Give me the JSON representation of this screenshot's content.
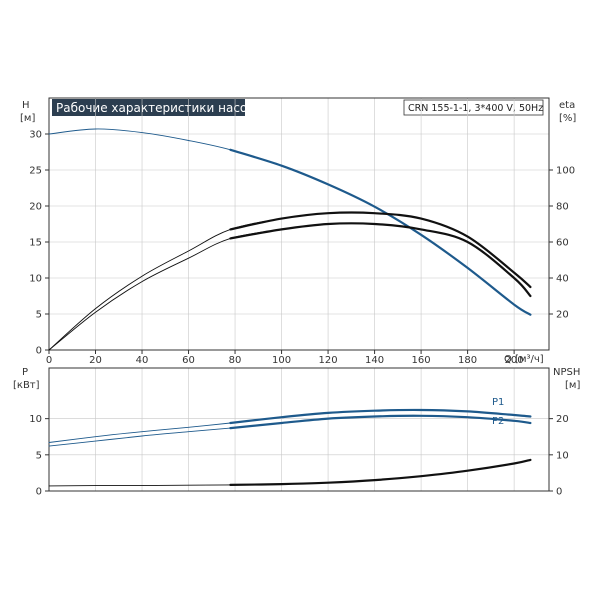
{
  "title": "Рабочие характеристики насоса",
  "model_label": "CRN 155-1-1, 3*400 V, 50Hz",
  "colors": {
    "black": "#111111",
    "blue": "#1e5a8c",
    "grid": "#c8c8c8",
    "title_bg": "#2c3e50"
  },
  "axis_labels": {
    "h": "H",
    "h_unit": "[м]",
    "eta": "eta",
    "eta_unit": "[%]",
    "q": "Q [м³/ч]",
    "p": "P",
    "p_unit": "[кВт]",
    "npsh": "NPSH",
    "npsh_unit": "[м]"
  },
  "chart_data": [
    {
      "type": "line",
      "title": "Рабочие характеристики насоса",
      "xlabel": "Q [м³/ч]",
      "ylabel": "H [м]",
      "y2label": "eta [%]",
      "xlim": [
        0,
        215
      ],
      "ylim": [
        0,
        35
      ],
      "y2lim": [
        0,
        140
      ],
      "x_ticks": [
        0,
        20,
        40,
        60,
        80,
        100,
        120,
        140,
        160,
        180,
        200
      ],
      "y_ticks": [
        0,
        5,
        10,
        15,
        20,
        25,
        30
      ],
      "y2_ticks": [
        20,
        40,
        60,
        80,
        100
      ],
      "grid": true,
      "series": [
        {
          "axis": "left",
          "x": [
            0,
            20,
            40,
            60,
            78,
            100,
            120,
            140,
            160,
            180,
            200,
            207
          ],
          "y": [
            30.0,
            30.7,
            30.2,
            29.1,
            27.8,
            25.6,
            23.0,
            19.9,
            16.0,
            11.4,
            6.3,
            4.9
          ]
        },
        {
          "axis": "right",
          "x": [
            0,
            20,
            40,
            60,
            78,
            100,
            120,
            140,
            160,
            180,
            200,
            207
          ],
          "y": [
            0,
            23,
            41,
            55,
            67,
            73,
            76,
            76,
            73,
            63,
            43,
            35
          ]
        },
        {
          "axis": "right",
          "x": [
            0,
            20,
            40,
            60,
            78,
            100,
            120,
            140,
            160,
            180,
            200,
            207
          ],
          "y": [
            0,
            21,
            38,
            51,
            62,
            67,
            70,
            70,
            67,
            60,
            40,
            30
          ]
        }
      ]
    },
    {
      "type": "line",
      "xlabel": "Q [м³/ч]",
      "ylabel": "P [кВт]",
      "y2label": "NPSH [м]",
      "xlim": [
        0,
        215
      ],
      "ylim": [
        0,
        17
      ],
      "y2lim": [
        0,
        34
      ],
      "y_ticks": [
        0,
        5,
        10
      ],
      "y2_ticks": [
        0,
        10,
        20
      ],
      "grid": true,
      "series": [
        {
          "name": "P1",
          "axis": "left",
          "x": [
            0,
            20,
            40,
            60,
            78,
            100,
            120,
            140,
            160,
            180,
            200,
            207
          ],
          "y": [
            6.7,
            7.5,
            8.2,
            8.8,
            9.4,
            10.2,
            10.8,
            11.1,
            11.2,
            11.0,
            10.5,
            10.3
          ]
        },
        {
          "name": "P2",
          "axis": "left",
          "x": [
            0,
            20,
            40,
            60,
            78,
            100,
            120,
            140,
            160,
            180,
            200,
            207
          ],
          "y": [
            6.2,
            6.9,
            7.6,
            8.2,
            8.7,
            9.4,
            10.0,
            10.3,
            10.4,
            10.2,
            9.7,
            9.4
          ]
        },
        {
          "axis": "right",
          "x": [
            0,
            20,
            40,
            60,
            78,
            100,
            120,
            140,
            160,
            180,
            200,
            207
          ],
          "y": [
            1.4,
            1.5,
            1.5,
            1.6,
            1.7,
            1.9,
            2.3,
            3.0,
            4.1,
            5.6,
            7.6,
            8.6
          ]
        }
      ]
    }
  ]
}
